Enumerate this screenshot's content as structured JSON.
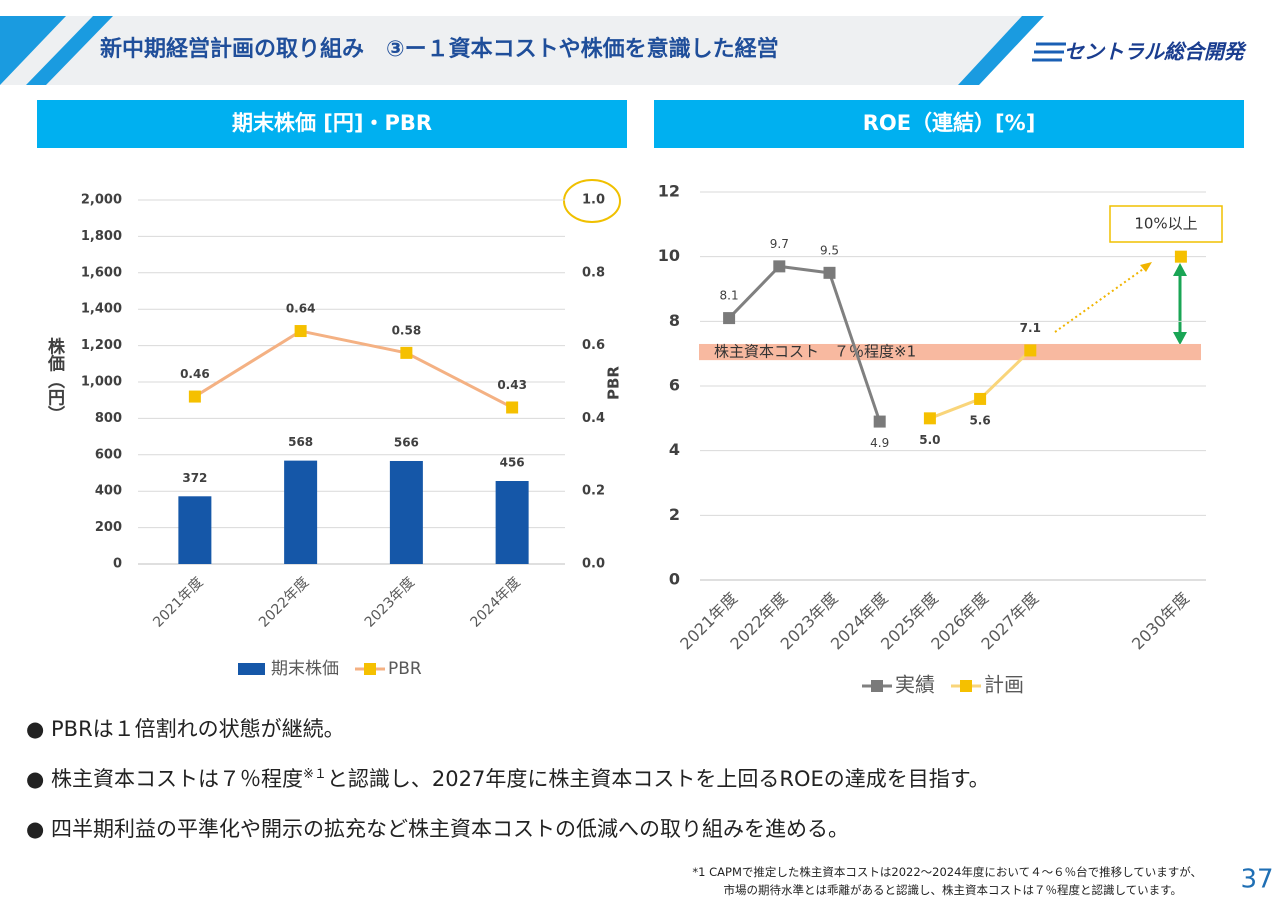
{
  "header": {
    "title": "新中期経営計画の取り組み　③ー１資本コストや株価を意識した経営",
    "logo": "セントラル総合開発"
  },
  "chart_data": [
    {
      "type": "bar",
      "title": "期末株価 [円]・PBR",
      "y_label": "株価（円）",
      "y2_label": "PBR",
      "categories": [
        "2021年度",
        "2022年度",
        "2023年度",
        "2024年度"
      ],
      "series": [
        {
          "name": "期末株価",
          "type": "bar",
          "color": "#1557a8",
          "values": [
            372,
            568,
            566,
            456
          ]
        },
        {
          "name": "PBR",
          "type": "line",
          "axis": "y2",
          "color": "#f4b183",
          "marker_color": "#f5c000",
          "values": [
            0.46,
            0.64,
            0.58,
            0.43
          ]
        }
      ],
      "ylim": [
        0,
        2000
      ],
      "yticks": [
        0,
        200,
        400,
        600,
        800,
        {
          "value": 1000,
          "label": "1,000"
        },
        {
          "value": 1200,
          "label": "1,200"
        },
        {
          "value": 1400,
          "label": "1,400"
        },
        {
          "value": 1600,
          "label": "1,600"
        },
        {
          "value": 1800,
          "label": "1,800"
        },
        {
          "value": 2000,
          "label": "2,000"
        }
      ],
      "y2lim": [
        0,
        1
      ],
      "y2ticks": [
        {
          "value": 0,
          "label": "0.0"
        },
        0.2,
        0.4,
        0.6,
        0.8,
        {
          "value": 1,
          "label": "1.0"
        }
      ],
      "grid": true,
      "legend": "bottom"
    },
    {
      "type": "line",
      "title": "ROE（連結）[%]",
      "categories": [
        "2021年度",
        "2022年度",
        "2023年度",
        "2024年度",
        "2025年度",
        "2026年度",
        "2027年度",
        null,
        null,
        "2030年度"
      ],
      "series": [
        {
          "name": "実績",
          "color": "#808080",
          "marker_color": "#7a7a7a",
          "values": [
            8.1,
            9.7,
            9.5,
            4.9,
            null,
            null,
            null,
            null,
            null,
            null
          ]
        },
        {
          "name": "計画",
          "color": "#f9d57a",
          "marker_color": "#f5c000",
          "values": [
            null,
            null,
            null,
            null,
            5,
            5.6,
            7.1,
            null,
            null,
            10
          ],
          "value_labels": [
            null,
            null,
            null,
            null,
            "5.0",
            "5.6",
            "7.1",
            null,
            null,
            null
          ]
        }
      ],
      "ylim": [
        0,
        12
      ],
      "yticks": [
        0,
        2,
        4,
        6,
        8,
        10,
        12
      ],
      "grid": true,
      "legend": "bottom",
      "band": {
        "text": "株主資本コスト　７％程度※1",
        "ylim": [
          6.8,
          7.3
        ]
      },
      "callout": "10%以上"
    }
  ],
  "bullets": [
    "PBRは１倍割れの状態が継続。",
    [
      "株主資本コストは７％程度",
      "※１",
      "と認識し、2027年度に株主資本コストを上回るROEの達成を目指す。"
    ],
    "四半期利益の平準化や開示の拡充など株主資本コストの低減への取り組みを進める。"
  ],
  "footnote": [
    "*1 CAPMで推定した株主資本コストは2022～2024年度において４～６％台で推移していますが、",
    "市場の期待水準とは乖離があると認識し、株主資本コストは７％程度と認識しています。"
  ],
  "page": "37"
}
